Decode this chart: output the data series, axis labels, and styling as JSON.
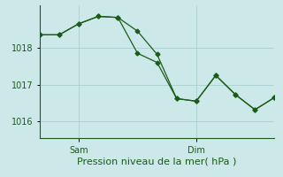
{
  "xlabel": "Pression niveau de la mer( hPa )",
  "bg_color": "#cce8e8",
  "line_color": "#1a5c1a",
  "grid_color": "#aad0d0",
  "axis_color": "#1a5a1a",
  "tick_label_color": "#1a5a1a",
  "xlabel_color": "#1a5a1a",
  "ylim": [
    1015.55,
    1019.15
  ],
  "yticks": [
    1016,
    1017,
    1018
  ],
  "xlim": [
    0,
    12
  ],
  "sam_x": 2.0,
  "dim_x": 8.0,
  "series1_x": [
    0,
    1,
    2,
    3,
    4,
    5,
    6,
    7,
    8,
    9,
    10,
    11,
    12
  ],
  "series1_y": [
    1018.35,
    1018.35,
    1018.65,
    1018.85,
    1018.82,
    1017.85,
    1017.6,
    1016.62,
    1016.55,
    1017.25,
    1016.73,
    1016.32,
    1016.65
  ],
  "series2_x": [
    0,
    1,
    2,
    3,
    4,
    5,
    6,
    7,
    8,
    9,
    10,
    11,
    12
  ],
  "series2_y": [
    1018.35,
    1018.35,
    1018.65,
    1018.85,
    1018.82,
    1018.45,
    1017.82,
    1016.62,
    1016.55,
    1017.25,
    1016.73,
    1016.32,
    1016.65
  ],
  "marker_size": 2.5,
  "line_width": 0.9,
  "xlabel_fontsize": 8,
  "tick_fontsize": 7
}
